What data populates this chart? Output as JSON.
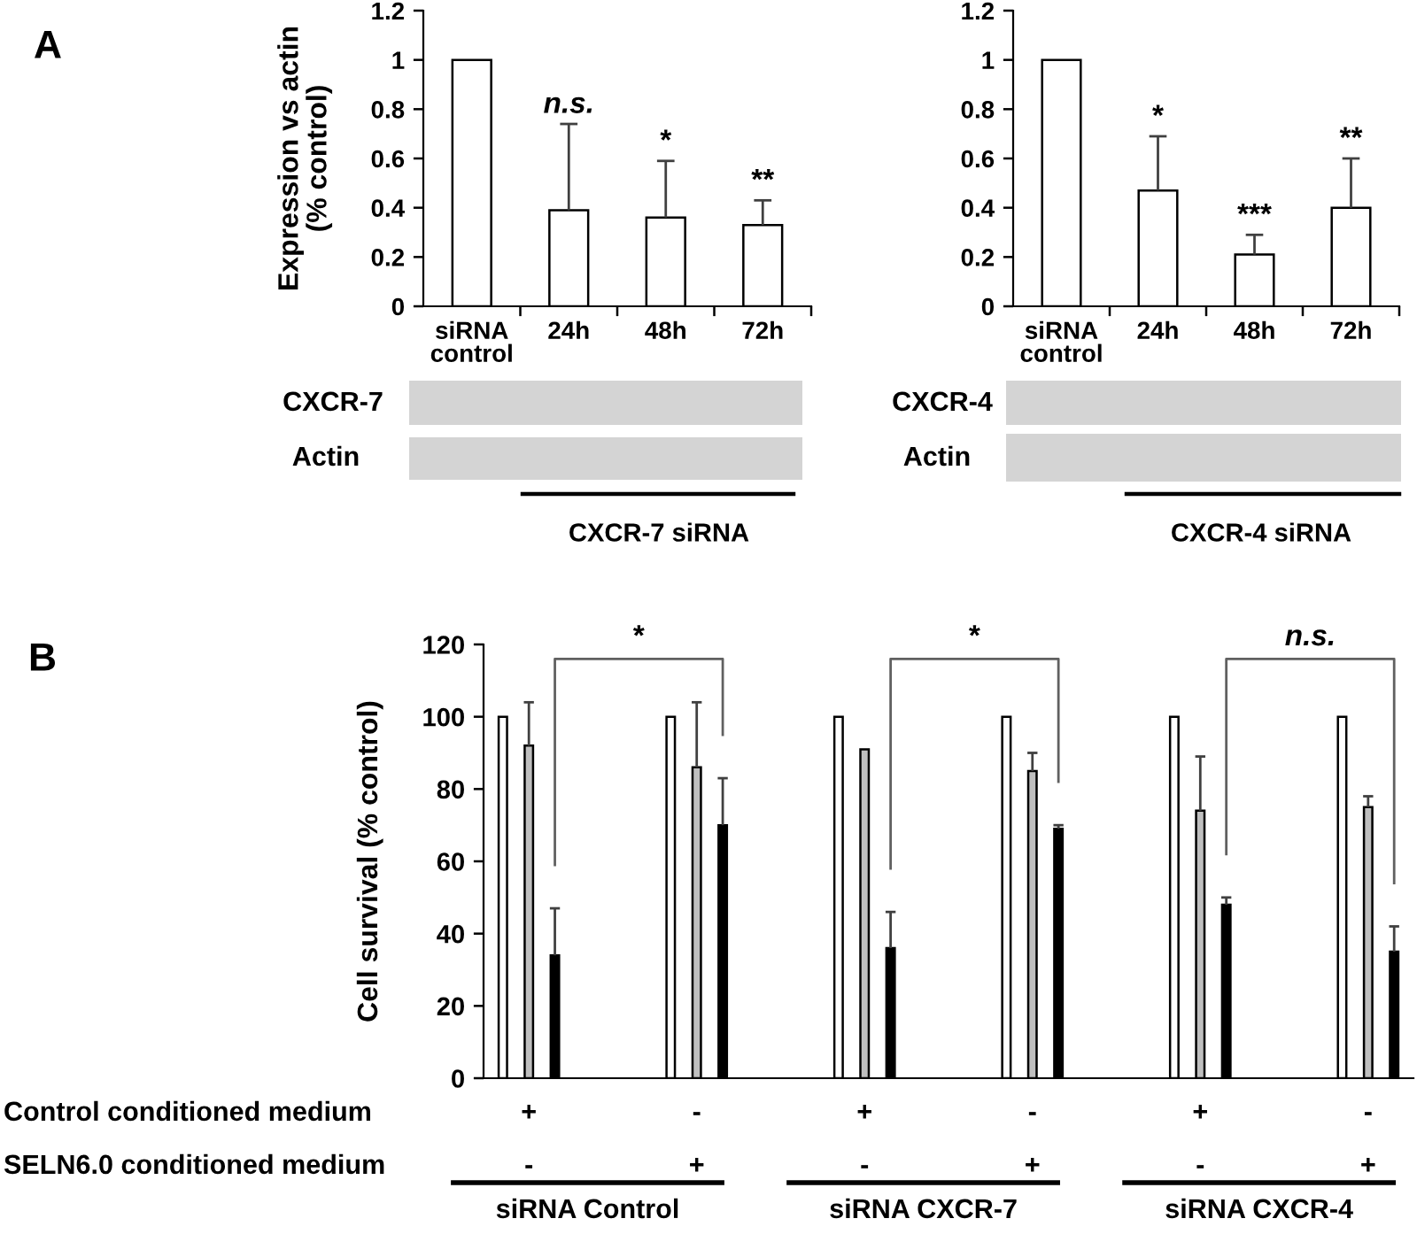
{
  "chart_data": [
    {
      "type": "bar",
      "categories": [
        "siRNA\ncontrol",
        "24h",
        "48h",
        "72h"
      ],
      "values": [
        1,
        0.39,
        0.36,
        0.33
      ],
      "errors": [
        null,
        [
          0.39,
          0.74
        ],
        [
          0.36,
          0.59
        ],
        [
          0.33,
          0.43
        ]
      ],
      "color": "#ffffff",
      "ylabel": "Expression vs actin\n(% control)",
      "ylim": [
        0,
        1.2
      ],
      "yticks": [
        0,
        0.2,
        0.4,
        0.6,
        0.8,
        1,
        1.2
      ],
      "annotations": [
        {
          "text": "n.s.",
          "x": "24h",
          "y": 0.74
        },
        {
          "text": "*",
          "x": "48h",
          "y": 0.59
        },
        {
          "text": "**",
          "x": "72h",
          "y": 0.43
        },
        "A",
        "CXCR-7",
        "Actin",
        "CXCR-7 siRNA"
      ]
    },
    {
      "type": "bar",
      "categories": [
        "siRNA\ncontrol",
        "24h",
        "48h",
        "72h"
      ],
      "values": [
        1,
        0.47,
        0.21,
        0.4
      ],
      "errors": [
        null,
        [
          0.47,
          0.69
        ],
        [
          0.21,
          0.29
        ],
        [
          0.4,
          0.6
        ]
      ],
      "color": "#ffffff",
      "ylim": [
        0,
        1.2
      ],
      "yticks": [
        0,
        0.2,
        0.4,
        0.6,
        0.8,
        1,
        1.2
      ],
      "annotations": [
        {
          "text": "*",
          "x": "24h",
          "y": 0.69
        },
        {
          "text": "***",
          "x": "48h",
          "y": 0.29
        },
        {
          "text": "**",
          "x": "72h",
          "y": 0.6
        },
        "CXCR-4",
        "Actin",
        "CXCR-4 siRNA"
      ]
    },
    {
      "type": "bar",
      "categories": [
        "+\n-",
        "-\n+",
        "+\n-",
        "-\n+",
        "+\n-",
        "-\n+"
      ],
      "series": [
        {
          "color": "#ffffff",
          "values": [
            100,
            100,
            100,
            100,
            100,
            100
          ]
        },
        {
          "color": "#bfbfbf",
          "values": [
            92,
            86,
            91,
            85,
            74,
            75
          ],
          "errors": [
            [
              92,
              104
            ],
            [
              86,
              104
            ],
            null,
            [
              85,
              90
            ],
            [
              74,
              89
            ],
            [
              75,
              78
            ]
          ]
        },
        {
          "color": "#000000",
          "values": [
            34,
            70,
            36,
            69,
            48,
            35
          ],
          "errors": [
            [
              34,
              47
            ],
            [
              70,
              83
            ],
            [
              36,
              46
            ],
            [
              69,
              70
            ],
            [
              48,
              50
            ],
            [
              35,
              42
            ]
          ]
        }
      ],
      "ylabel": "Cell survival (% control)",
      "ylim": [
        0,
        120
      ],
      "yticks": [
        0,
        20,
        40,
        60,
        80,
        100,
        120
      ],
      "annotations": [
        "B",
        "*",
        "*",
        "n.s.",
        "Control conditioned medium",
        "SELN6.0 conditioned medium",
        "siRNA Control",
        "siRNA CXCR-7",
        "siRNA CXCR-4"
      ]
    }
  ]
}
